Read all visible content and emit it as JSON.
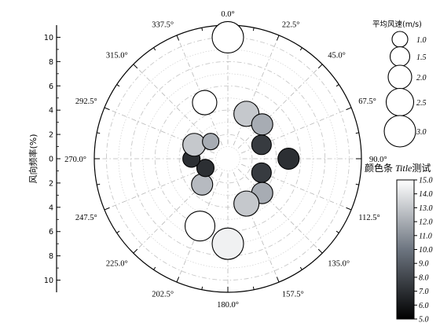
{
  "chart_data": {
    "type": "scatter",
    "subtype": "polar-bubble",
    "title": "",
    "angular_tick_labels": [
      "0.0°",
      "22.5°",
      "45.0°",
      "67.5°",
      "90.0°",
      "112.5°",
      "135.0°",
      "157.5°",
      "180.0°",
      "202.5°",
      "225.0°",
      "247.5°",
      "270.0°",
      "292.5°",
      "315.0°",
      "337.5°"
    ],
    "radial_axis": {
      "label": "风向频率(%)",
      "ticks": [
        "10",
        "8",
        "6",
        "4",
        "2",
        "0",
        "2",
        "4",
        "6",
        "8",
        "10"
      ],
      "range": [
        0,
        11
      ]
    },
    "size_legend": {
      "title": "平均风速(m/s)",
      "entries": [
        "1.0",
        "1.5",
        "2.0",
        "2.5",
        "3.0"
      ]
    },
    "colorbar": {
      "title_parts": [
        "颜色条 ",
        "Title",
        "测试"
      ],
      "ticks": [
        "15.0",
        "14.0",
        "13.0",
        "12.0",
        "11.0",
        "10.0",
        "9.0",
        "8.0",
        "7.0",
        "6.0",
        "5.0"
      ],
      "range": [
        5,
        15
      ]
    },
    "points": [
      {
        "direction": 0.0,
        "frequency": 10.0,
        "speed": 3.0,
        "value": 15.0
      },
      {
        "direction": 22.5,
        "frequency": 4.0,
        "speed": 2.2,
        "value": 13.0
      },
      {
        "direction": 45.0,
        "frequency": 4.0,
        "speed": 1.7,
        "value": 12.0
      },
      {
        "direction": 67.5,
        "frequency": 3.0,
        "speed": 1.5,
        "value": 7.5
      },
      {
        "direction": 90.0,
        "frequency": 5.0,
        "speed": 1.7,
        "value": 7.0
      },
      {
        "direction": 112.5,
        "frequency": 3.0,
        "speed": 1.5,
        "value": 7.5
      },
      {
        "direction": 135.0,
        "frequency": 4.0,
        "speed": 1.7,
        "value": 12.0
      },
      {
        "direction": 157.5,
        "frequency": 4.0,
        "speed": 2.2,
        "value": 13.0
      },
      {
        "direction": 180.0,
        "frequency": 7.0,
        "speed": 3.0,
        "value": 14.5
      },
      {
        "direction": 202.5,
        "frequency": 6.0,
        "speed": 2.8,
        "value": 15.0
      },
      {
        "direction": 225.0,
        "frequency": 3.0,
        "speed": 1.7,
        "value": 12.5
      },
      {
        "direction": 247.5,
        "frequency": 2.0,
        "speed": 1.2,
        "value": 7.0
      },
      {
        "direction": 270.0,
        "frequency": 3.0,
        "speed": 1.2,
        "value": 7.0
      },
      {
        "direction": 292.5,
        "frequency": 3.0,
        "speed": 1.9,
        "value": 13.0
      },
      {
        "direction": 315.0,
        "frequency": 2.0,
        "speed": 1.1,
        "value": 12.0
      },
      {
        "direction": 337.5,
        "frequency": 5.0,
        "speed": 2.1,
        "value": 15.0
      }
    ],
    "grid": true
  }
}
